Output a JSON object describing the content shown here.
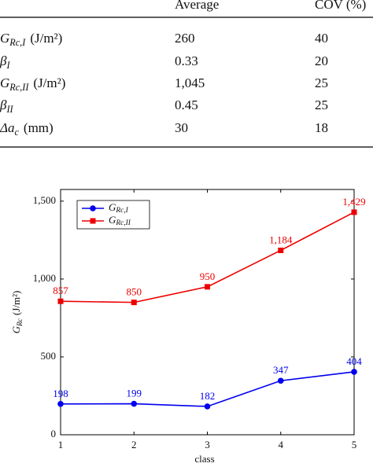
{
  "table": {
    "columns": [
      "Average",
      "COV (%)"
    ],
    "rows": [
      {
        "symbol": "G",
        "sub": "Rc,I",
        "unit": "(J/m²)",
        "average": "260",
        "cov": "40"
      },
      {
        "symbol": "β",
        "sub": "I",
        "unit": "",
        "average": "0.33",
        "cov": "20"
      },
      {
        "symbol": "G",
        "sub": "Rc,II",
        "unit": "(J/m²)",
        "average": "1,045",
        "cov": "25"
      },
      {
        "symbol": "β",
        "sub": "II",
        "unit": "",
        "average": "0.45",
        "cov": "25"
      },
      {
        "symbol": "Δa",
        "sub": "c",
        "unit": "(mm)",
        "average": "30",
        "cov": "18"
      }
    ]
  },
  "chart_data": {
    "type": "line",
    "xlabel": "class",
    "ylabel": {
      "symbol": "G",
      "sub": "Rc",
      "unit": "(J/m²)"
    },
    "x": [
      1,
      2,
      3,
      4,
      5
    ],
    "xlim": [
      1,
      5
    ],
    "xticks": [
      1,
      2,
      3,
      4,
      5
    ],
    "ylim": [
      0,
      1575
    ],
    "yticks": [
      0,
      500,
      {
        "value": 1000,
        "label": "1,000"
      },
      {
        "value": 1500,
        "label": "1,500"
      }
    ],
    "legend": "upper left",
    "series": [
      {
        "name": "G",
        "subscript": "Rc,I",
        "color": "#0000ee",
        "marker": "circle",
        "values": [
          198,
          199,
          182,
          347,
          404
        ]
      },
      {
        "name": "G",
        "subscript": "Rc,II",
        "color": "#ee0000",
        "marker": "square",
        "values": [
          857,
          850,
          950,
          1184,
          1429
        ],
        "value_labels": [
          "857",
          "850",
          "950",
          "1,184",
          "1,429"
        ]
      }
    ]
  }
}
